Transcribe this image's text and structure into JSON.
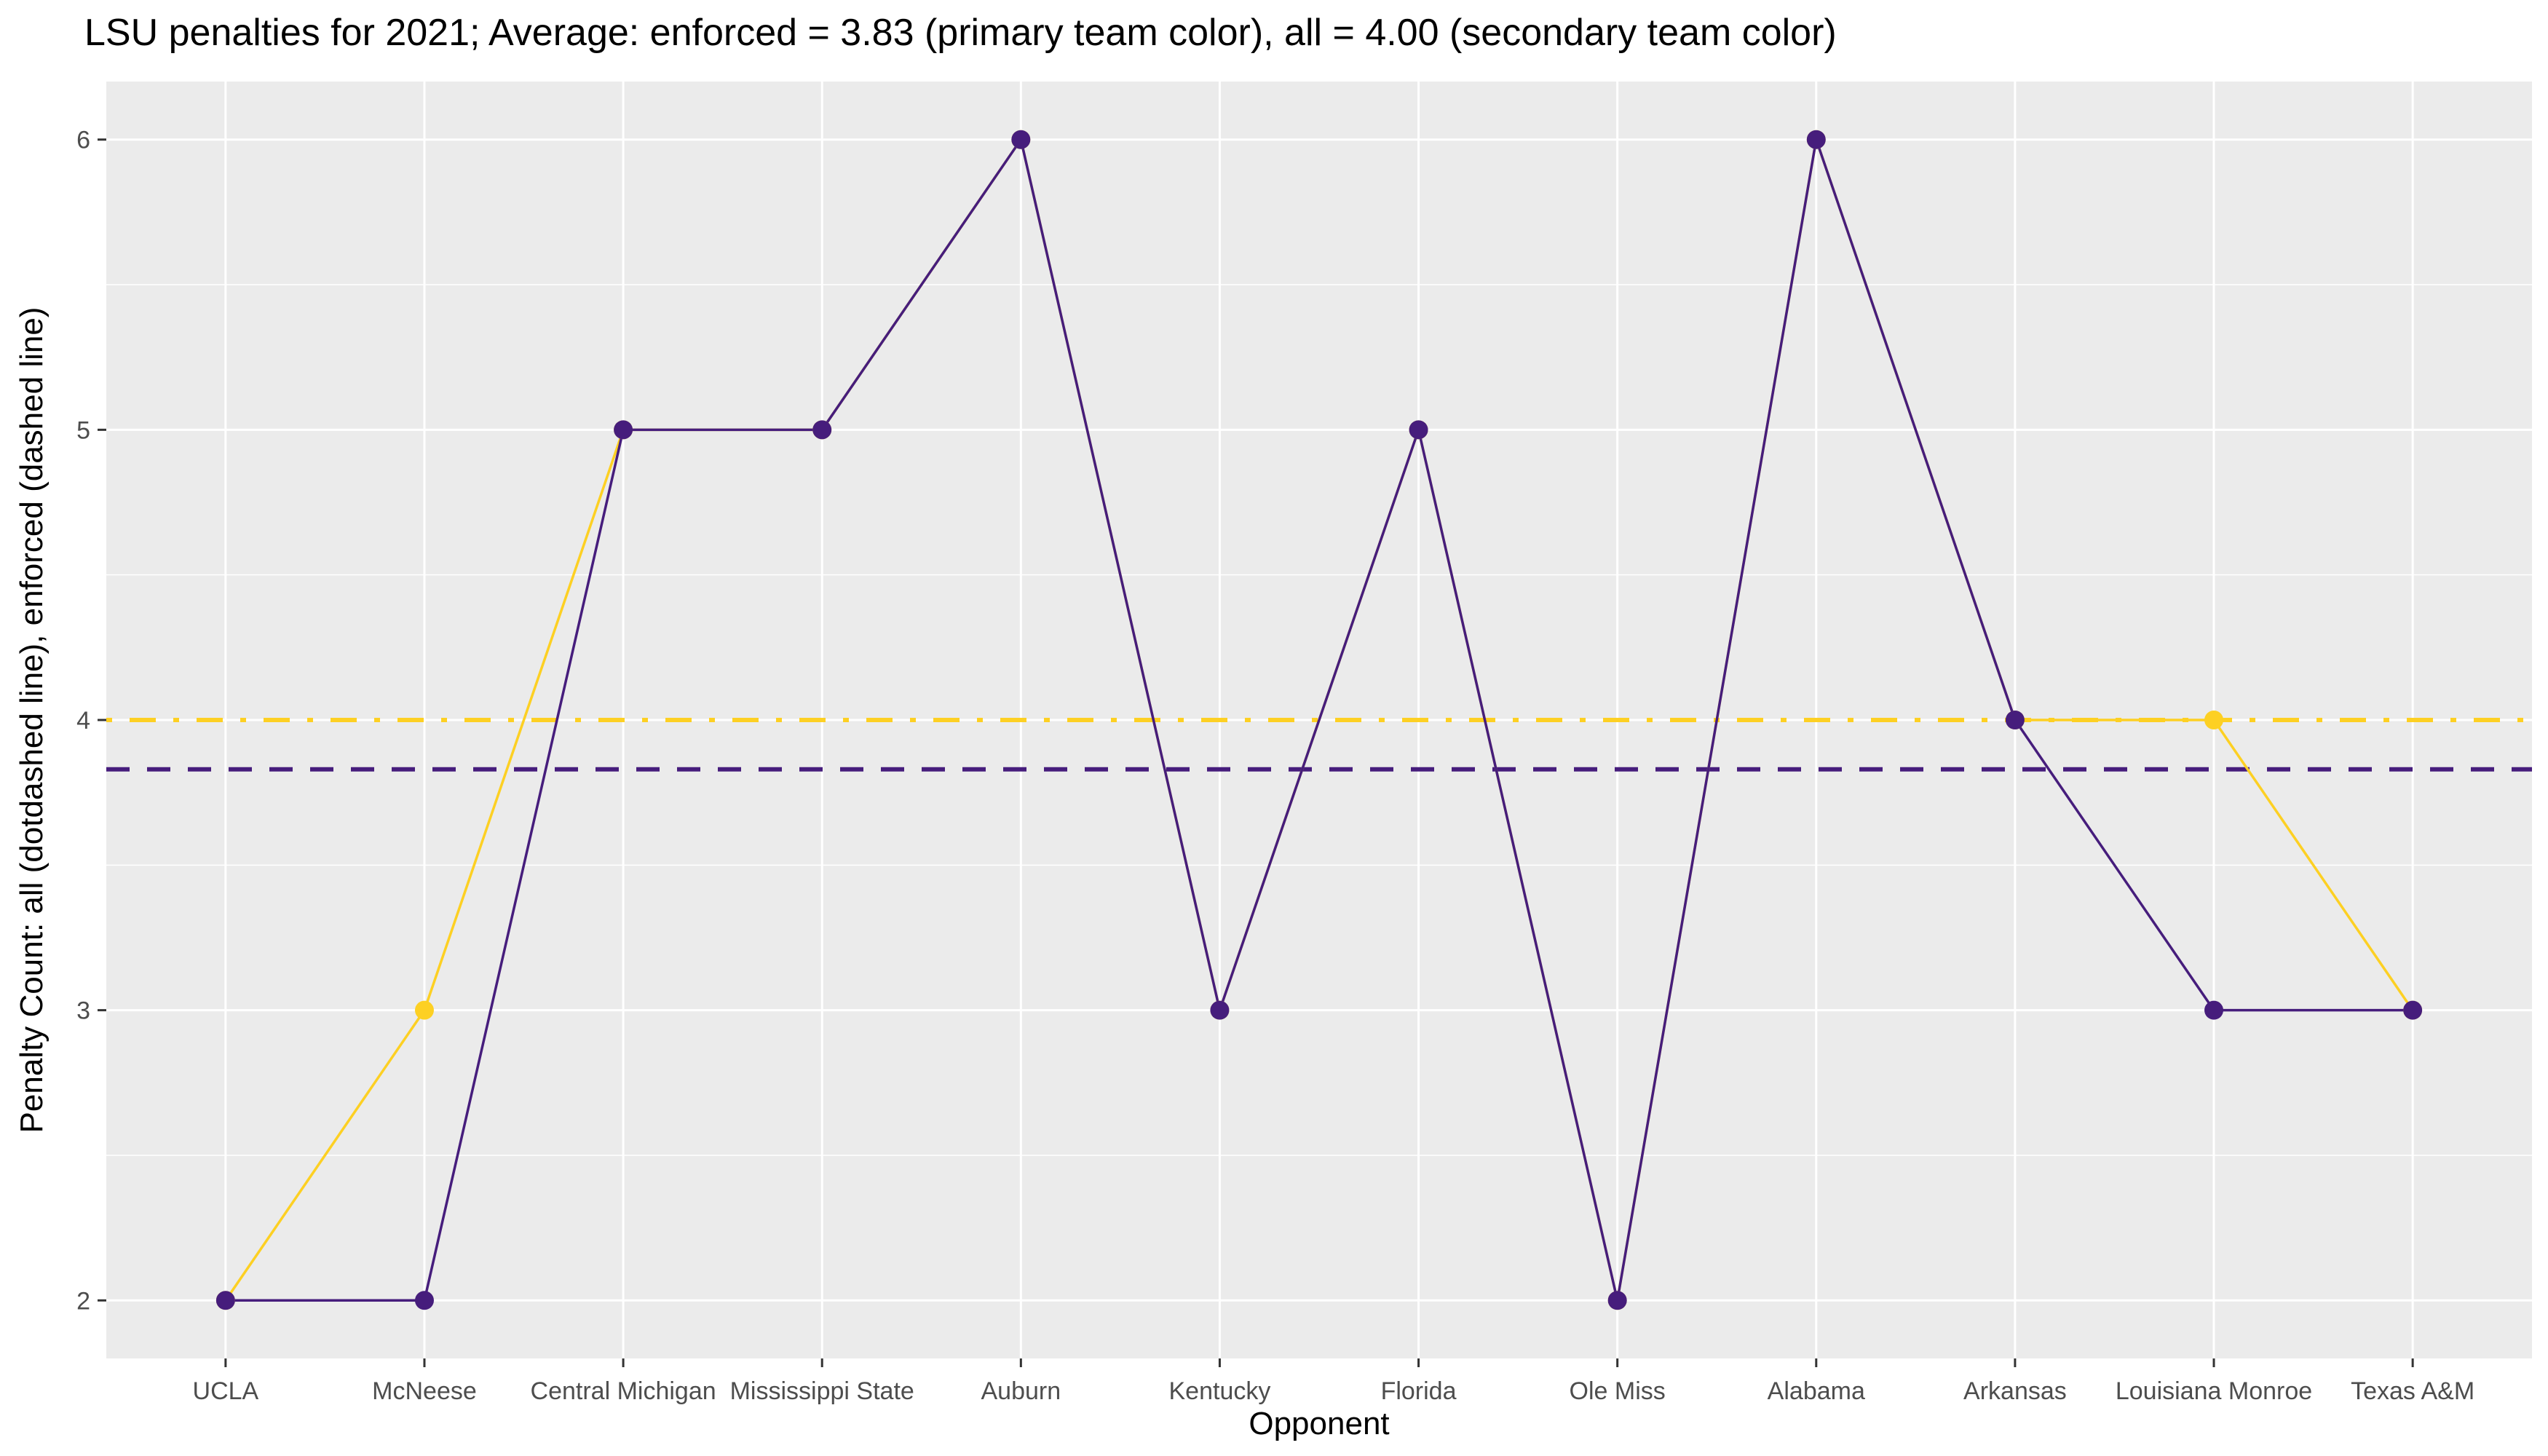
{
  "chart_data": {
    "type": "line",
    "title": "LSU penalties for 2021; Average: enforced = 3.83 (primary team color), all = 4.00 (secondary team color)",
    "xlabel": "Opponent",
    "ylabel": "Penalty Count: all (dotdashed line), enforced (dashed line)",
    "categories": [
      "UCLA",
      "McNeese",
      "Central Michigan",
      "Mississippi State",
      "Auburn",
      "Kentucky",
      "Florida",
      "Ole Miss",
      "Alabama",
      "Arkansas",
      "Louisiana Monroe",
      "Texas A&M"
    ],
    "series": [
      {
        "key": "all",
        "color": "#FDD023",
        "values": [
          2,
          3,
          5,
          5,
          6,
          3,
          5,
          2,
          6,
          4,
          4,
          3
        ]
      },
      {
        "key": "enforced",
        "color": "#461D7C",
        "values": [
          2,
          2,
          5,
          5,
          6,
          3,
          5,
          2,
          6,
          4,
          3,
          3
        ]
      }
    ],
    "reference_lines": [
      {
        "key": "all_average",
        "value": 4.0,
        "color": "#FDD023",
        "style": "dotdash"
      },
      {
        "key": "enforced_average",
        "value": 3.83,
        "color": "#461D7C",
        "style": "dashed"
      }
    ],
    "y_ticks": [
      2,
      3,
      4,
      5,
      6
    ],
    "ylim": [
      1.8,
      6.2
    ],
    "grid": true,
    "background": "#EBEBEB",
    "grid_color": "#FFFFFF"
  }
}
